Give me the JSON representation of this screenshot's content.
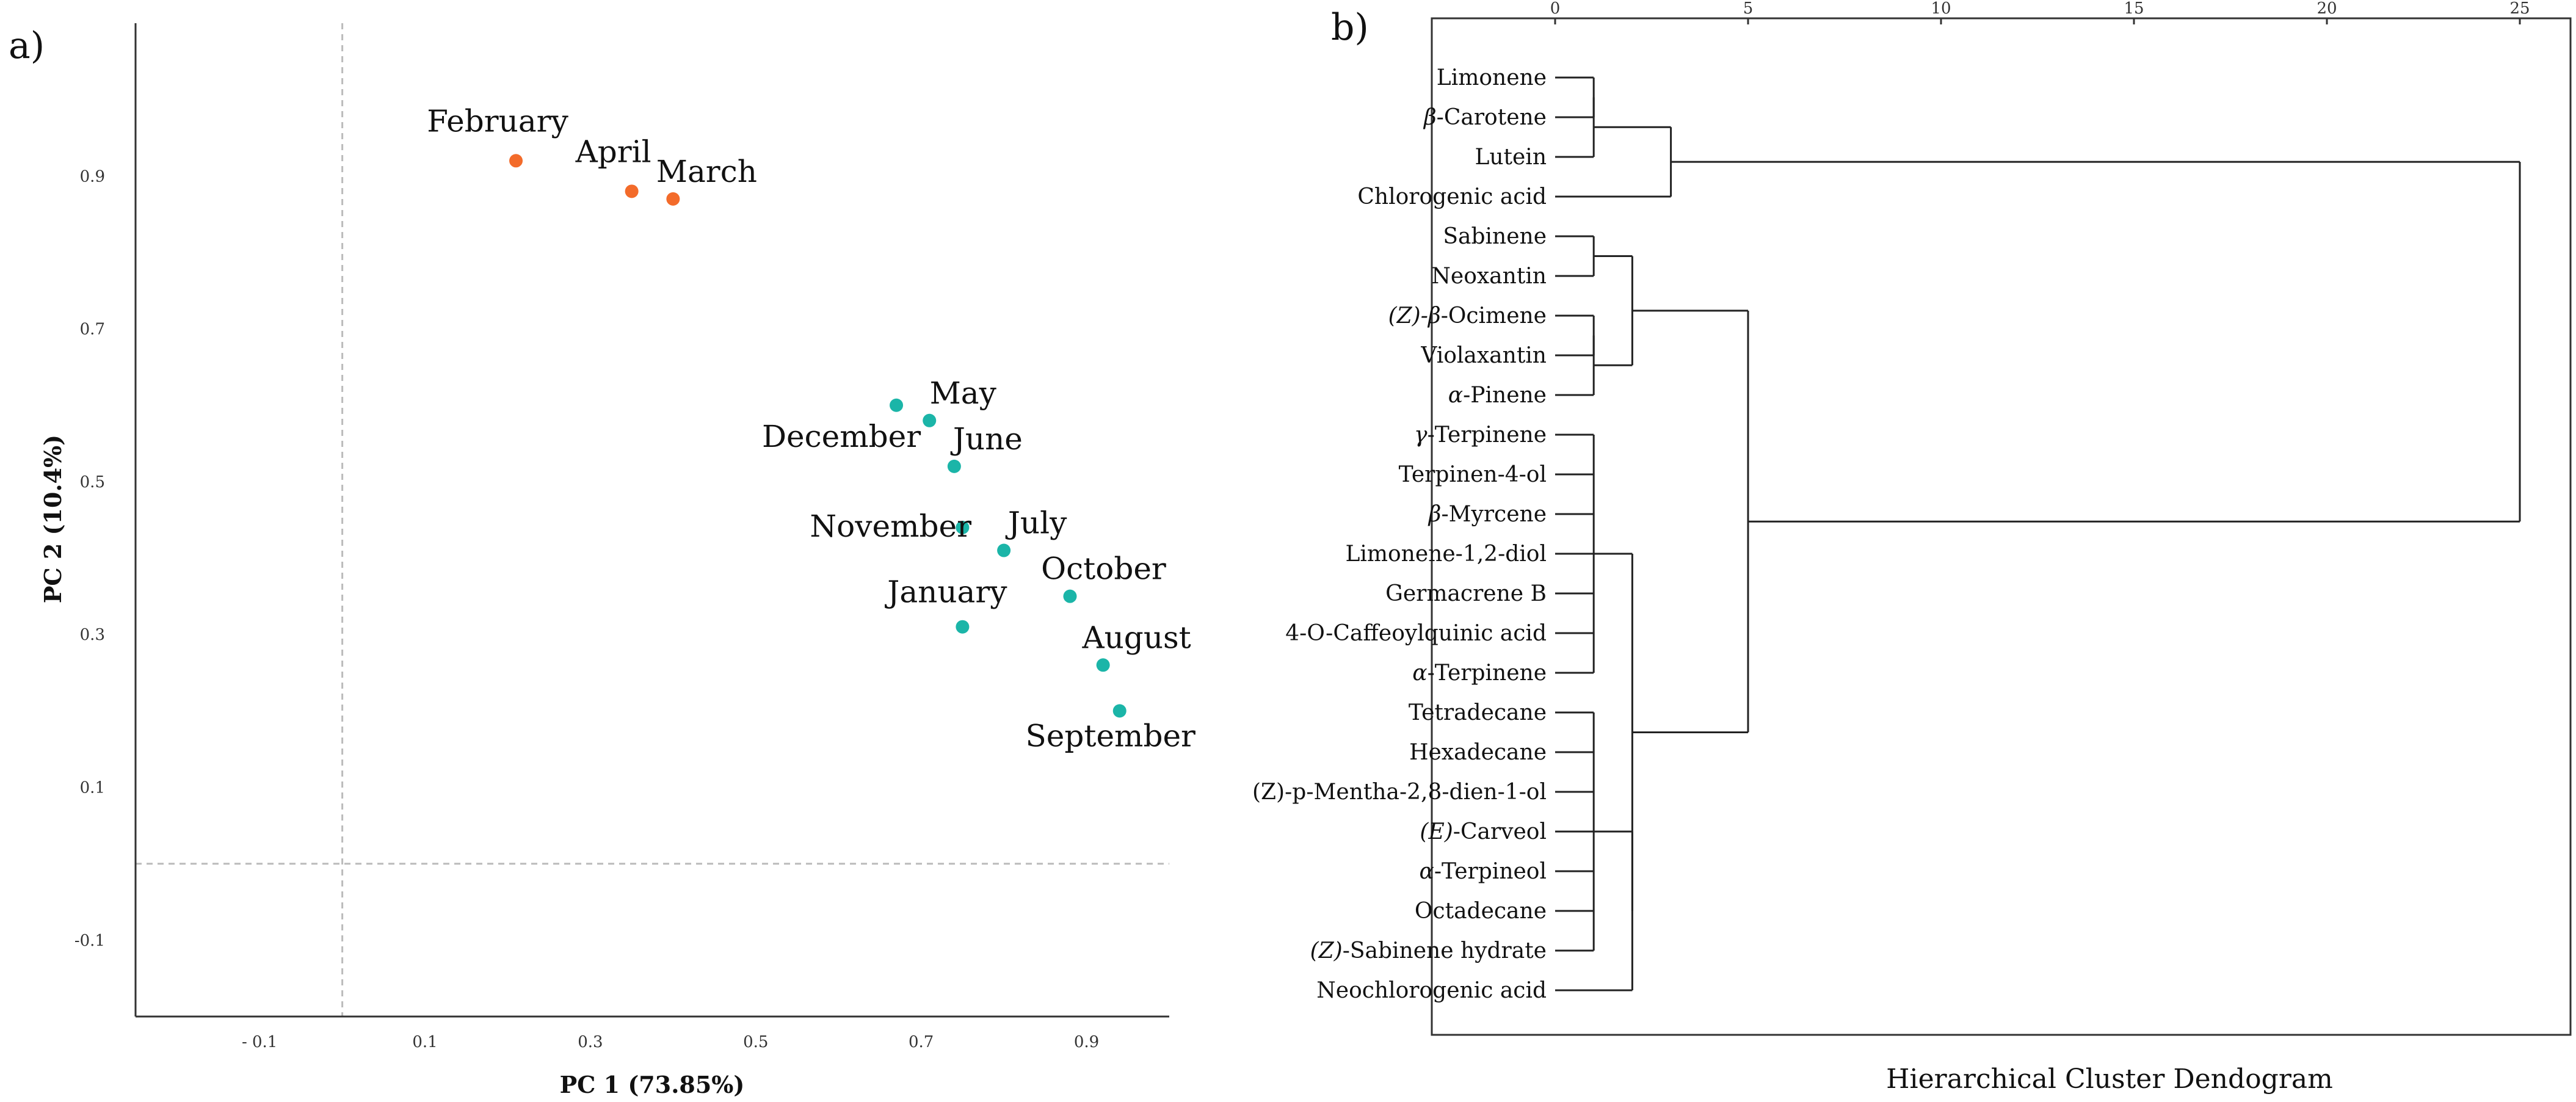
{
  "chart_data": [
    {
      "type": "scatter",
      "panel_label": "a)",
      "xlabel": "PC 1 (73.85%)",
      "ylabel": "PC 2 (10.4%)",
      "xlim": [
        -0.25,
        1.0
      ],
      "ylim": [
        -0.2,
        1.1
      ],
      "x_ticks": [
        -0.1,
        0.1,
        0.3,
        0.5,
        0.7,
        0.9
      ],
      "x_tick_labels": [
        "- 0.1",
        "0.1",
        "0.3",
        "0.5",
        "0.7",
        "0.9"
      ],
      "y_ticks": [
        -0.1,
        0.1,
        0.3,
        0.5,
        0.7,
        0.9
      ],
      "y_tick_labels": [
        "-0.1",
        "0.1",
        "0.3",
        "0.5",
        "0.7",
        "0.9"
      ],
      "reference_lines": {
        "x": 0,
        "y": 0
      },
      "colors": {
        "orange": "#F36B2A",
        "teal": "#1BB5A8",
        "guide": "#bbbbbb"
      },
      "points": [
        {
          "label": "February",
          "x": 0.21,
          "y": 0.92,
          "color": "orange",
          "label_pos": "above-left"
        },
        {
          "label": "April",
          "x": 0.35,
          "y": 0.88,
          "color": "orange",
          "label_pos": "above-left"
        },
        {
          "label": "March",
          "x": 0.4,
          "y": 0.87,
          "color": "orange",
          "label_pos": "above-right"
        },
        {
          "label": "December",
          "x": 0.67,
          "y": 0.6,
          "color": "teal",
          "label_pos": "below-left"
        },
        {
          "label": "May",
          "x": 0.71,
          "y": 0.58,
          "color": "teal",
          "label_pos": "above-right"
        },
        {
          "label": "June",
          "x": 0.74,
          "y": 0.52,
          "color": "teal",
          "label_pos": "above-right"
        },
        {
          "label": "November",
          "x": 0.75,
          "y": 0.44,
          "color": "teal",
          "label_pos": "left"
        },
        {
          "label": "July",
          "x": 0.8,
          "y": 0.41,
          "color": "teal",
          "label_pos": "above-right"
        },
        {
          "label": "October",
          "x": 0.88,
          "y": 0.35,
          "color": "teal",
          "label_pos": "above-right"
        },
        {
          "label": "January",
          "x": 0.75,
          "y": 0.31,
          "color": "teal",
          "label_pos": "above"
        },
        {
          "label": "August",
          "x": 0.92,
          "y": 0.26,
          "color": "teal",
          "label_pos": "above-right"
        },
        {
          "label": "September",
          "x": 0.94,
          "y": 0.2,
          "color": "teal",
          "label_pos": "below"
        }
      ]
    },
    {
      "type": "dendrogram",
      "panel_label": "b)",
      "title": "Hierarchical Cluster Dendogram",
      "xlim": [
        0,
        25
      ],
      "x_ticks": [
        0,
        5,
        10,
        15,
        20,
        25
      ],
      "leaves": [
        {
          "pre": "",
          "italic": "",
          "post": "Limonene"
        },
        {
          "pre": "",
          "italic": "β",
          "post": "-Carotene"
        },
        {
          "pre": "",
          "italic": "",
          "post": "Lutein"
        },
        {
          "pre": "",
          "italic": "",
          "post": "Chlorogenic acid"
        },
        {
          "pre": "",
          "italic": "",
          "post": "Sabinene"
        },
        {
          "pre": "",
          "italic": "",
          "post": "Neoxantin"
        },
        {
          "pre": "",
          "italic": "(Z)-β",
          "post": "-Ocimene"
        },
        {
          "pre": "",
          "italic": "",
          "post": "Violaxantin"
        },
        {
          "pre": "",
          "italic": "α",
          "post": "-Pinene"
        },
        {
          "pre": "",
          "italic": "γ",
          "post": "-Terpinene"
        },
        {
          "pre": "",
          "italic": "",
          "post": "Terpinen-4-ol"
        },
        {
          "pre": "",
          "italic": "β",
          "post": "-Myrcene"
        },
        {
          "pre": "",
          "italic": "",
          "post": "Limonene-1,2-diol"
        },
        {
          "pre": "",
          "italic": "",
          "post": "Germacrene B"
        },
        {
          "pre": "",
          "italic": "",
          "post": "4-O-Caffeoylquinic acid"
        },
        {
          "pre": "",
          "italic": "α",
          "post": "-Terpinene"
        },
        {
          "pre": "",
          "italic": "",
          "post": "Tetradecane"
        },
        {
          "pre": "",
          "italic": "",
          "post": "Hexadecane"
        },
        {
          "pre": "",
          "italic": "",
          "post": "(Z)-p-Mentha-2,8-dien-1-ol"
        },
        {
          "pre": "",
          "italic": "(E)",
          "post": "-Carveol"
        },
        {
          "pre": "",
          "italic": "α",
          "post": "-Terpineol"
        },
        {
          "pre": "",
          "italic": "",
          "post": "Octadecane"
        },
        {
          "pre": "",
          "italic": "(Z)",
          "post": "-Sabinene hydrate"
        },
        {
          "pre": "",
          "italic": "",
          "post": "Neochlorogenic acid"
        }
      ],
      "merges": [
        {
          "members": [
            0,
            1
          ],
          "height": 1.0
        },
        {
          "members": [
            "c0",
            2
          ],
          "height": 1.0
        },
        {
          "members": [
            "c1",
            3
          ],
          "height": 3.0
        },
        {
          "members": [
            4,
            5
          ],
          "height": 1.0
        },
        {
          "members": [
            6,
            7
          ],
          "height": 1.0
        },
        {
          "members": [
            "c4",
            8
          ],
          "height": 1.0
        },
        {
          "members": [
            "c3",
            "c5"
          ],
          "height": 2.0
        },
        {
          "members": [
            9,
            10,
            11,
            12,
            13,
            14,
            15
          ],
          "height": 1.0
        },
        {
          "members": [
            16,
            17,
            18,
            19,
            20,
            21,
            22
          ],
          "height": 1.0
        },
        {
          "members": [
            "c8",
            23
          ],
          "height": 2.0
        },
        {
          "members": [
            "c7",
            "c9"
          ],
          "height": 2.0
        },
        {
          "members": [
            "c6",
            "c10"
          ],
          "height": 5.0
        },
        {
          "members": [
            "c2",
            "c11"
          ],
          "height": 25.0
        }
      ]
    }
  ]
}
